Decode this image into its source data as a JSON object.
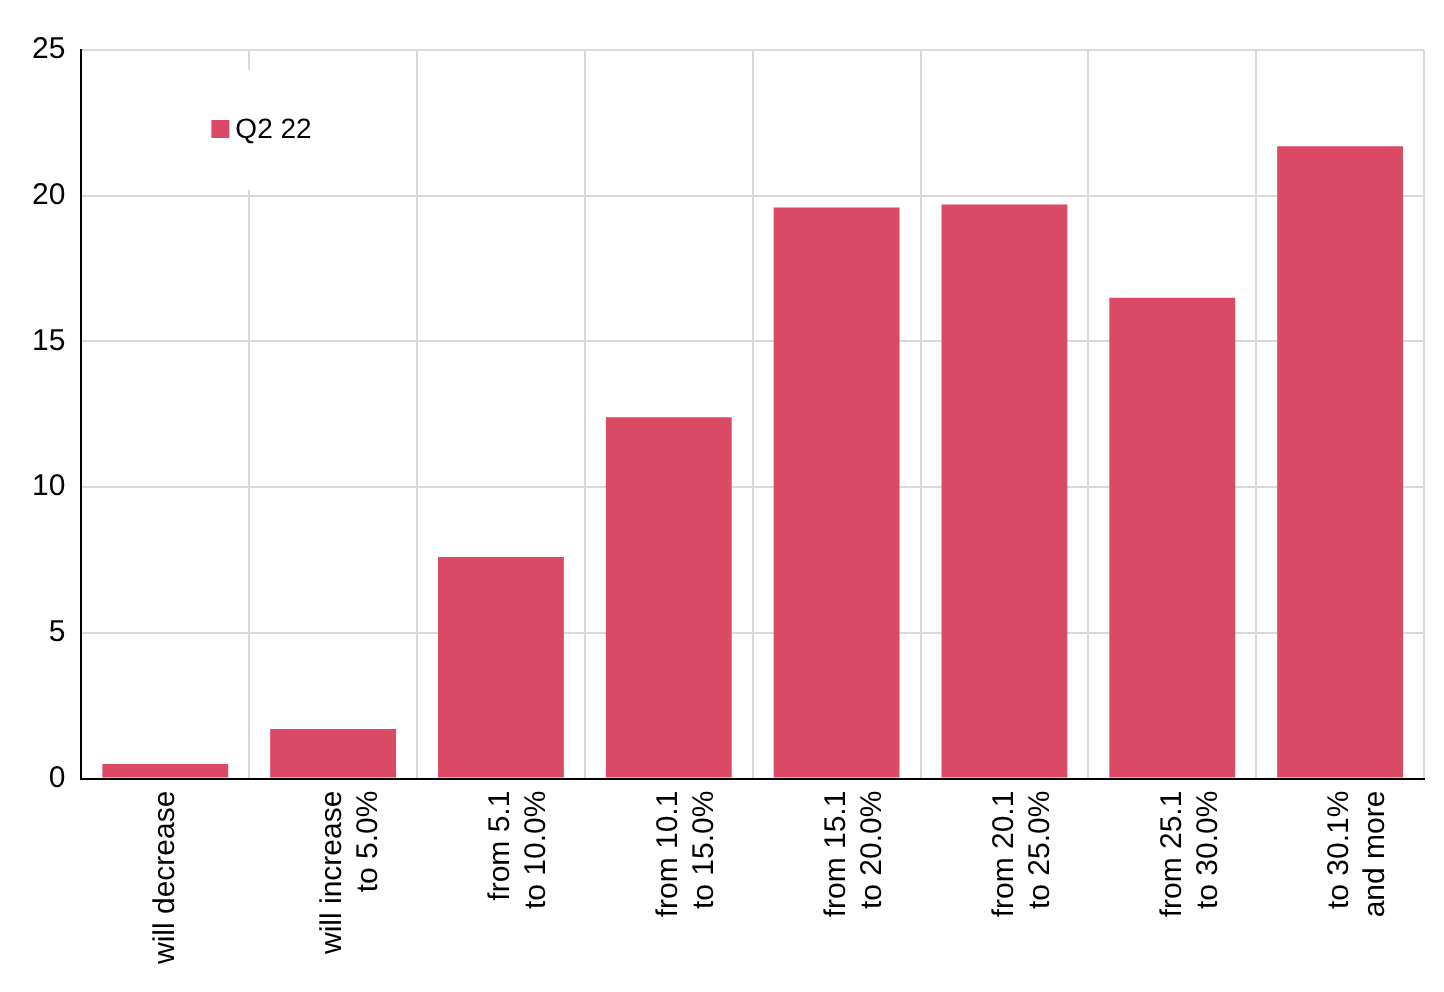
{
  "chart_data": {
    "type": "bar",
    "categories": [
      "will decrease",
      "will increase to 5.0%",
      "from 5.1 to 10.0%",
      "from 10.1 to 15.0%",
      "from 15.1 to 20.0%",
      "from 20.1 to 25.0%",
      "from 25.1 to 30.0%",
      "to 30.1% and more"
    ],
    "series": [
      {
        "name": "Q2 22",
        "color": "#db4a64",
        "values": [
          0.5,
          1.7,
          7.6,
          12.4,
          19.6,
          19.7,
          16.5,
          21.7
        ]
      }
    ],
    "ylim": [
      0,
      25
    ],
    "yticks": [
      0,
      5,
      10,
      15,
      20,
      25
    ],
    "grid": true,
    "legend": "top left"
  }
}
